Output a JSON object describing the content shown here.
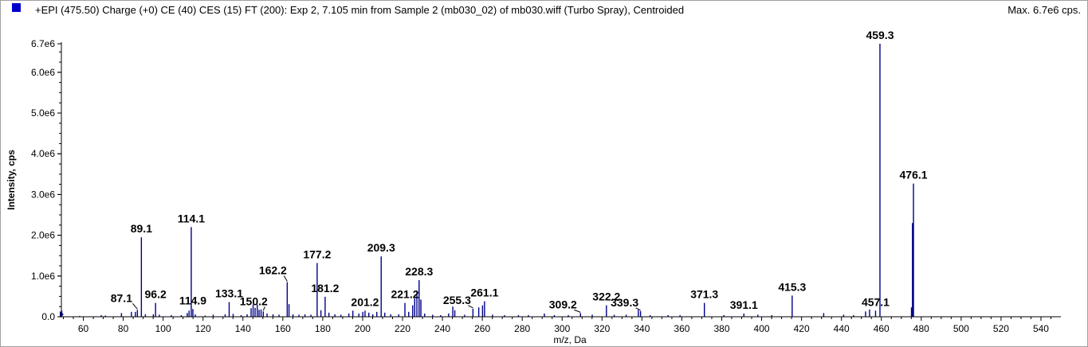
{
  "header": {
    "title": "+EPI (475.50) Charge (+0) CE (40) CES (15) FT (200): Exp 2, 7.105 min from Sample 2 (mb030_02) of mb030.wiff (Turbo Spray), Centroided",
    "max_label": "Max. 6.7e6 cps.",
    "swatch_color": "#0000cc"
  },
  "chart_data": {
    "type": "bar",
    "title": "+EPI (475.50) Charge (+0) CE (40) CES (15) FT (200): Exp 2, 7.105 min from Sample 2 (mb030_02) of mb030.wiff (Turbo Spray), Centroided",
    "xlabel": "m/z, Da",
    "ylabel": "Intensity, cps",
    "xlim": [
      49,
      550
    ],
    "ylim": [
      0,
      6700000.0
    ],
    "grid": false,
    "bar_color": "#00008b",
    "x_ticks": [
      60,
      80,
      100,
      120,
      140,
      160,
      180,
      200,
      220,
      240,
      260,
      280,
      300,
      320,
      340,
      360,
      380,
      400,
      420,
      440,
      460,
      480,
      500,
      520,
      540
    ],
    "y_ticks": [
      {
        "value": 0,
        "label": "0.0"
      },
      {
        "value": 1000000,
        "label": "1.0e6"
      },
      {
        "value": 2000000,
        "label": "2.0e6"
      },
      {
        "value": 3000000,
        "label": "3.0e6"
      },
      {
        "value": 4000000,
        "label": "4.0e6"
      },
      {
        "value": 5000000,
        "label": "5.0e6"
      },
      {
        "value": 6000000,
        "label": "6.0e6"
      },
      {
        "value": 6700000,
        "label": "6.7e6"
      }
    ],
    "peaks": [
      {
        "mz": 49.2,
        "intensity": 150000
      },
      {
        "mz": 58.1,
        "intensity": 20000
      },
      {
        "mz": 69.0,
        "intensity": 40000
      },
      {
        "mz": 71.1,
        "intensity": 30000
      },
      {
        "mz": 79.1,
        "intensity": 90000
      },
      {
        "mz": 84.1,
        "intensity": 120000
      },
      {
        "mz": 86.1,
        "intensity": 120000
      },
      {
        "mz": 87.1,
        "intensity": 170000,
        "label": "87.1"
      },
      {
        "mz": 89.1,
        "intensity": 1950000,
        "label": "89.1"
      },
      {
        "mz": 91.1,
        "intensity": 60000
      },
      {
        "mz": 95.1,
        "intensity": 60000
      },
      {
        "mz": 96.2,
        "intensity": 340000,
        "label": "96.2"
      },
      {
        "mz": 98.1,
        "intensity": 50000
      },
      {
        "mz": 104.1,
        "intensity": 40000
      },
      {
        "mz": 109.1,
        "intensity": 40000
      },
      {
        "mz": 112.1,
        "intensity": 90000
      },
      {
        "mz": 113.0,
        "intensity": 150000
      },
      {
        "mz": 114.1,
        "intensity": 2200000,
        "label": "114.1"
      },
      {
        "mz": 114.9,
        "intensity": 190000,
        "label": "114.9"
      },
      {
        "mz": 116.1,
        "intensity": 60000
      },
      {
        "mz": 121.1,
        "intensity": 30000
      },
      {
        "mz": 125.1,
        "intensity": 50000
      },
      {
        "mz": 131.1,
        "intensity": 60000
      },
      {
        "mz": 133.1,
        "intensity": 360000,
        "label": "133.1"
      },
      {
        "mz": 135.1,
        "intensity": 70000
      },
      {
        "mz": 139.1,
        "intensity": 40000
      },
      {
        "mz": 142.1,
        "intensity": 60000
      },
      {
        "mz": 144.1,
        "intensity": 210000
      },
      {
        "mz": 145.1,
        "intensity": 300000
      },
      {
        "mz": 146.1,
        "intensity": 220000
      },
      {
        "mz": 147.2,
        "intensity": 300000
      },
      {
        "mz": 148.1,
        "intensity": 170000
      },
      {
        "mz": 149.1,
        "intensity": 180000
      },
      {
        "mz": 150.2,
        "intensity": 130000,
        "label": "150.2"
      },
      {
        "mz": 152.1,
        "intensity": 80000
      },
      {
        "mz": 155.1,
        "intensity": 60000
      },
      {
        "mz": 158.1,
        "intensity": 50000
      },
      {
        "mz": 162.2,
        "intensity": 850000,
        "label": "162.2"
      },
      {
        "mz": 163.1,
        "intensity": 310000
      },
      {
        "mz": 165.1,
        "intensity": 60000
      },
      {
        "mz": 168.1,
        "intensity": 50000
      },
      {
        "mz": 171.1,
        "intensity": 60000
      },
      {
        "mz": 174.1,
        "intensity": 50000
      },
      {
        "mz": 177.2,
        "intensity": 1320000,
        "label": "177.2"
      },
      {
        "mz": 179.1,
        "intensity": 160000
      },
      {
        "mz": 181.2,
        "intensity": 490000,
        "label": "181.2"
      },
      {
        "mz": 183.1,
        "intensity": 100000
      },
      {
        "mz": 186.1,
        "intensity": 60000
      },
      {
        "mz": 189.1,
        "intensity": 50000
      },
      {
        "mz": 193.1,
        "intensity": 80000
      },
      {
        "mz": 195.1,
        "intensity": 150000
      },
      {
        "mz": 198.1,
        "intensity": 80000
      },
      {
        "mz": 200.1,
        "intensity": 120000
      },
      {
        "mz": 201.2,
        "intensity": 150000,
        "label": "201.2"
      },
      {
        "mz": 203.1,
        "intensity": 100000
      },
      {
        "mz": 205.1,
        "intensity": 60000
      },
      {
        "mz": 207.1,
        "intensity": 120000
      },
      {
        "mz": 209.3,
        "intensity": 1480000,
        "label": "209.3"
      },
      {
        "mz": 211.1,
        "intensity": 100000
      },
      {
        "mz": 214.1,
        "intensity": 60000
      },
      {
        "mz": 218.1,
        "intensity": 60000
      },
      {
        "mz": 221.2,
        "intensity": 340000,
        "label": "221.2"
      },
      {
        "mz": 223.1,
        "intensity": 120000
      },
      {
        "mz": 225.1,
        "intensity": 280000
      },
      {
        "mz": 226.1,
        "intensity": 450000
      },
      {
        "mz": 227.2,
        "intensity": 620000
      },
      {
        "mz": 228.3,
        "intensity": 900000,
        "label": "228.3"
      },
      {
        "mz": 229.2,
        "intensity": 420000
      },
      {
        "mz": 231.1,
        "intensity": 80000
      },
      {
        "mz": 235.1,
        "intensity": 50000
      },
      {
        "mz": 239.1,
        "intensity": 40000
      },
      {
        "mz": 243.1,
        "intensity": 80000
      },
      {
        "mz": 245.2,
        "intensity": 250000
      },
      {
        "mz": 246.2,
        "intensity": 160000
      },
      {
        "mz": 251.1,
        "intensity": 50000
      },
      {
        "mz": 255.3,
        "intensity": 200000,
        "label": "255.3"
      },
      {
        "mz": 258.2,
        "intensity": 230000
      },
      {
        "mz": 260.1,
        "intensity": 280000
      },
      {
        "mz": 261.1,
        "intensity": 380000,
        "label": "261.1"
      },
      {
        "mz": 265.1,
        "intensity": 50000
      },
      {
        "mz": 271.1,
        "intensity": 40000
      },
      {
        "mz": 278.1,
        "intensity": 40000
      },
      {
        "mz": 283.1,
        "intensity": 40000
      },
      {
        "mz": 291.1,
        "intensity": 80000
      },
      {
        "mz": 296.1,
        "intensity": 40000
      },
      {
        "mz": 303.1,
        "intensity": 40000
      },
      {
        "mz": 309.2,
        "intensity": 90000,
        "label": "309.2"
      },
      {
        "mz": 315.1,
        "intensity": 50000
      },
      {
        "mz": 322.2,
        "intensity": 280000,
        "label": "322.2"
      },
      {
        "mz": 326.1,
        "intensity": 50000
      },
      {
        "mz": 332.1,
        "intensity": 50000
      },
      {
        "mz": 338.2,
        "intensity": 170000
      },
      {
        "mz": 339.3,
        "intensity": 140000,
        "label": "339.3"
      },
      {
        "mz": 344.1,
        "intensity": 40000
      },
      {
        "mz": 353.1,
        "intensity": 40000
      },
      {
        "mz": 359.1,
        "intensity": 40000
      },
      {
        "mz": 371.3,
        "intensity": 340000,
        "label": "371.3"
      },
      {
        "mz": 381.1,
        "intensity": 40000
      },
      {
        "mz": 391.1,
        "intensity": 80000,
        "label": "391.1"
      },
      {
        "mz": 398.1,
        "intensity": 50000
      },
      {
        "mz": 405.1,
        "intensity": 40000
      },
      {
        "mz": 415.3,
        "intensity": 520000,
        "label": "415.3"
      },
      {
        "mz": 431.1,
        "intensity": 90000
      },
      {
        "mz": 441.1,
        "intensity": 50000
      },
      {
        "mz": 446.1,
        "intensity": 40000
      },
      {
        "mz": 452.1,
        "intensity": 130000
      },
      {
        "mz": 454.1,
        "intensity": 180000
      },
      {
        "mz": 457.1,
        "intensity": 150000,
        "label": "457.1"
      },
      {
        "mz": 459.3,
        "intensity": 6700000,
        "label": "459.3"
      },
      {
        "mz": 475.1,
        "intensity": 230000
      },
      {
        "mz": 475.6,
        "intensity": 2300000
      },
      {
        "mz": 476.1,
        "intensity": 3270000,
        "label": "476.1"
      }
    ]
  }
}
